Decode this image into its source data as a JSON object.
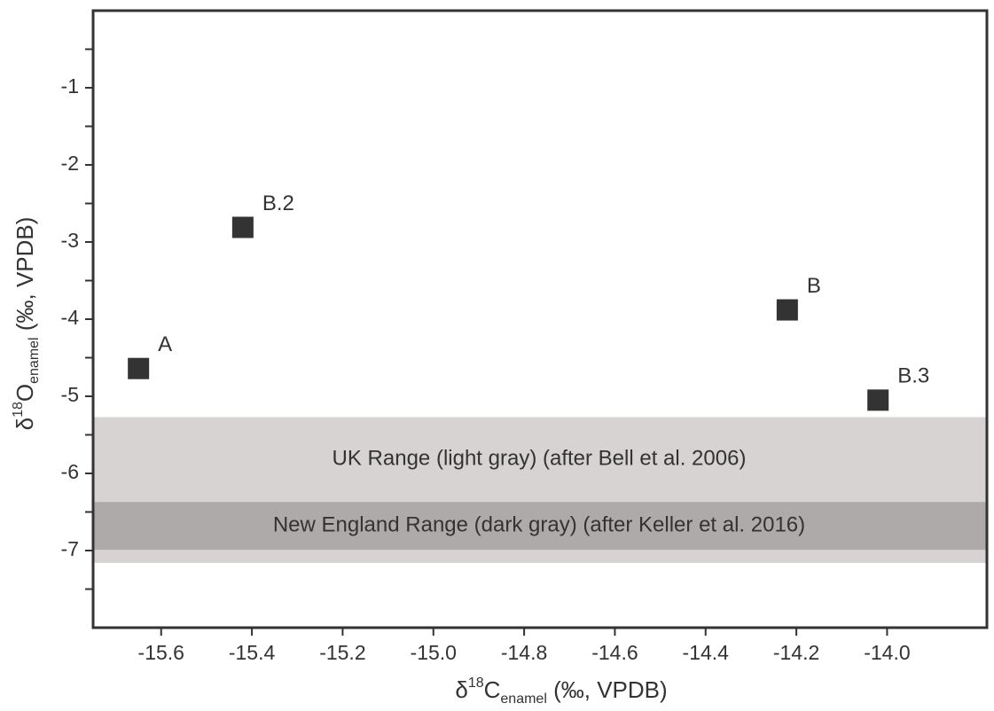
{
  "chart_data": {
    "type": "scatter",
    "xlabel": [
      "δ",
      "18",
      "C",
      "enamel",
      " (‰, VPDB)"
    ],
    "ylabel": [
      "δ",
      "18",
      "O",
      "enamel",
      " (‰, VPDB)"
    ],
    "xlim": [
      -15.75,
      -13.78
    ],
    "ylim": [
      -8,
      0
    ],
    "xticks": [
      -15.6,
      -15.4,
      -15.2,
      -15.0,
      -14.8,
      -14.6,
      -14.4,
      -14.2,
      -14.0
    ],
    "yticks": [
      -7,
      -6,
      -5,
      -4,
      -3,
      -2,
      -1
    ],
    "yticks_minor": [
      -7.5,
      -6.5,
      -5.5,
      -4.5,
      -3.5,
      -2.5,
      -1.5,
      -0.5
    ],
    "bands": [
      {
        "label": "UK Range (light gray) (after Bell et al. 2006)",
        "ymin": -7.16,
        "ymax": -5.27,
        "color": "#d6d3d2"
      },
      {
        "label": "New England Range (dark gray) (after Keller et al. 2016)",
        "ymin": -6.99,
        "ymax": -6.37,
        "color": "#aeaaa9"
      }
    ],
    "series": [
      {
        "color": "#333333",
        "labels": [
          "A",
          "B.2",
          "B",
          "B.3"
        ],
        "x": [
          -15.65,
          -15.42,
          -14.22,
          -14.02
        ],
        "values": [
          -4.64,
          -2.81,
          -3.88,
          -5.05
        ]
      }
    ]
  }
}
